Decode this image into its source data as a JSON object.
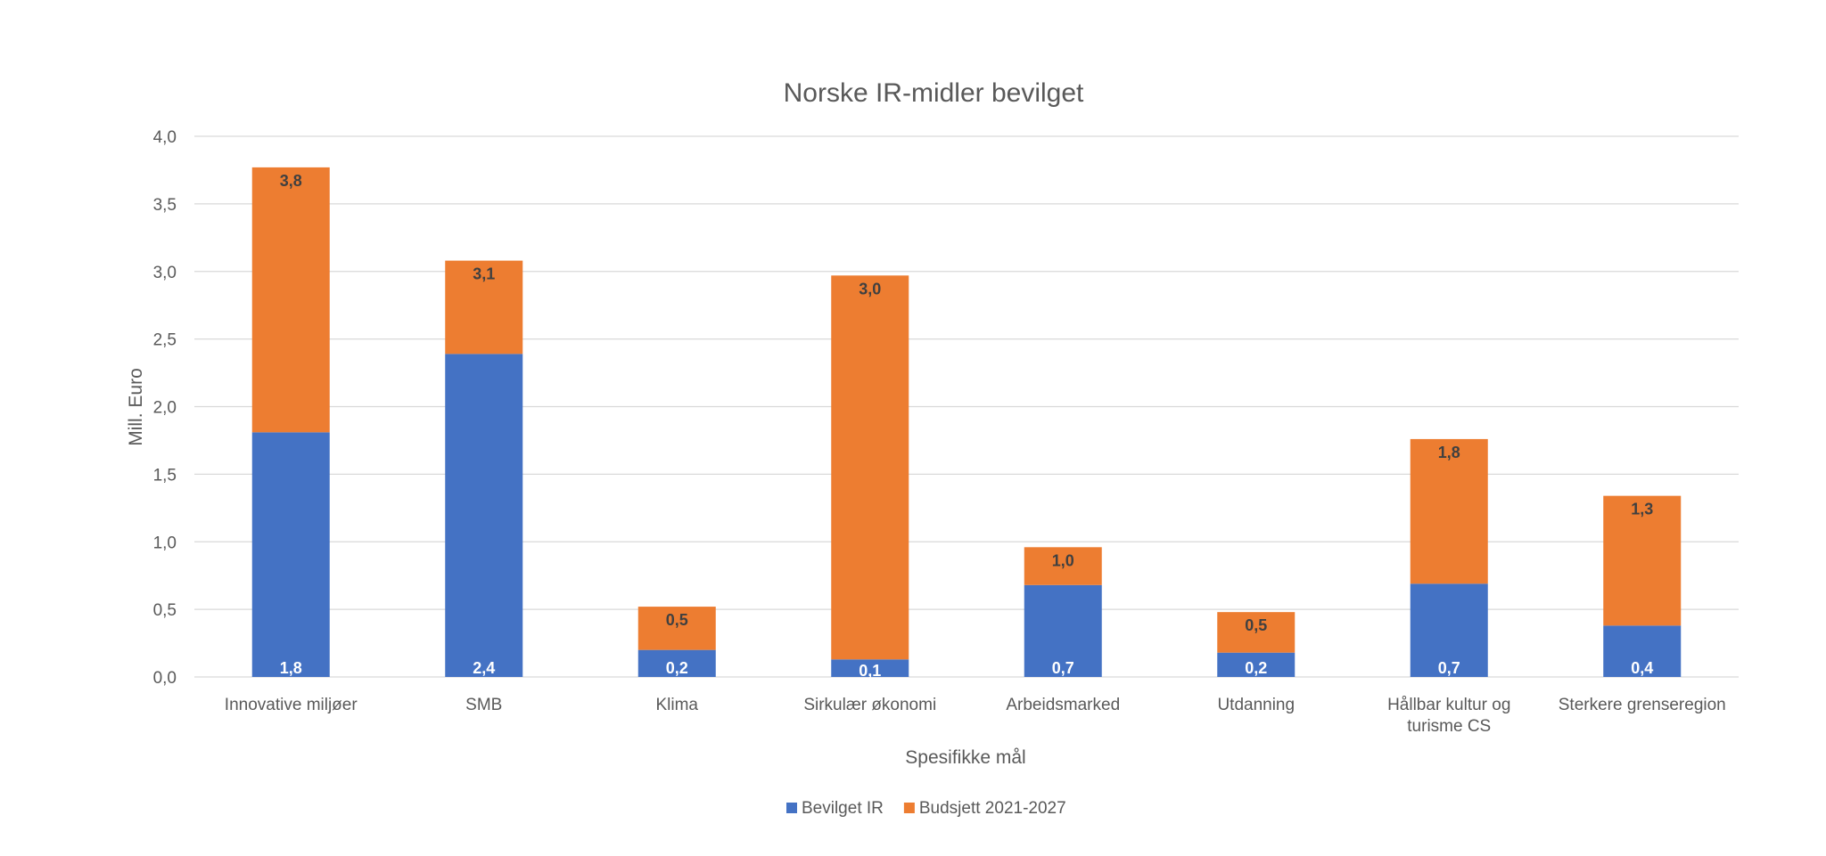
{
  "chart_data": {
    "type": "bar",
    "stacked": true,
    "title": "Norske IR-midler bevilget",
    "xlabel": "Spesifikke mål",
    "ylabel": "Mill. Euro",
    "ylim": [
      0,
      4
    ],
    "ytick_step": 0.5,
    "yticks": [
      "0,0",
      "0,5",
      "1,0",
      "1,5",
      "2,0",
      "2,5",
      "3,0",
      "3,5",
      "4,0"
    ],
    "grid": true,
    "legend_position": "bottom",
    "categories": [
      [
        "Innovative miljøer"
      ],
      [
        "SMB"
      ],
      [
        "Klima"
      ],
      [
        "Sirkulær økonomi"
      ],
      [
        "Arbeidsmarked"
      ],
      [
        "Utdanning"
      ],
      [
        "Hållbar kultur og",
        "turisme CS"
      ],
      [
        "Sterkere grenseregion"
      ]
    ],
    "series": [
      {
        "name": "Bevilget IR",
        "color": "#4472c4",
        "label_color": "#ffffff",
        "values": [
          1.81,
          2.39,
          0.2,
          0.13,
          0.68,
          0.18,
          0.69,
          0.38
        ],
        "labels": [
          "1,8",
          "2,4",
          "0,2",
          "0,1",
          "0,7",
          "0,2",
          "0,7",
          "0,4"
        ]
      },
      {
        "name": "Budsjett 2021-2027",
        "color": "#ed7d31",
        "label_color": "#404040",
        "values": [
          1.96,
          0.69,
          0.32,
          2.84,
          0.28,
          0.3,
          1.07,
          0.96
        ],
        "labels": [
          "3,8",
          "3,1",
          "0,5",
          "3,0",
          "1,0",
          "0,5",
          "1,8",
          "1,3"
        ]
      }
    ]
  }
}
